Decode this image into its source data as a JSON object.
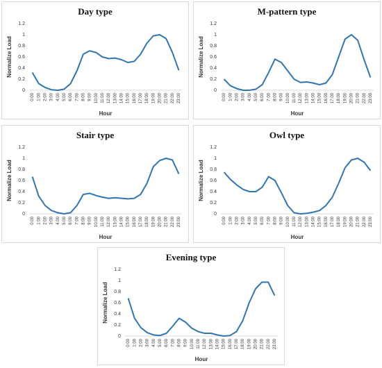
{
  "chart_data": [
    {
      "type": "line",
      "title": "Day type",
      "x_label": "Hour",
      "y_label": "Normalize Load",
      "categories": [
        "0:00",
        "1:00",
        "2:00",
        "3:00",
        "4:00",
        "5:00",
        "6:00",
        "7:00",
        "8:00",
        "9:00",
        "10:00",
        "11:00",
        "12:00",
        "13:00",
        "14:00",
        "15:00",
        "16:00",
        "17:00",
        "18:00",
        "19:00",
        "20:00",
        "21:00",
        "22:00",
        "23:00"
      ],
      "values": [
        0.32,
        0.12,
        0.05,
        0.01,
        0.0,
        0.02,
        0.12,
        0.35,
        0.65,
        0.71,
        0.68,
        0.6,
        0.57,
        0.58,
        0.55,
        0.5,
        0.52,
        0.65,
        0.85,
        0.98,
        1.0,
        0.93,
        0.68,
        0.36
      ],
      "color": "#2e75b6",
      "ylim": [
        0,
        1.2
      ],
      "yticks": [
        0,
        0.2,
        0.4,
        0.6,
        0.8,
        1,
        1.2
      ],
      "grid": false
    },
    {
      "type": "line",
      "title": "M-pattern type",
      "x_label": "Hour",
      "y_label": "Normalize Load",
      "categories": [
        "0:00",
        "1:00",
        "2:00",
        "3:00",
        "4:00",
        "5:00",
        "6:00",
        "7:00",
        "8:00",
        "9:00",
        "10:00",
        "11:00",
        "12:00",
        "13:00",
        "14:00",
        "15:00",
        "16:00",
        "17:00",
        "18:00",
        "19:00",
        "20:00",
        "21:00",
        "22:00",
        "23:00"
      ],
      "values": [
        0.2,
        0.08,
        0.03,
        0.0,
        0.0,
        0.02,
        0.1,
        0.32,
        0.56,
        0.5,
        0.35,
        0.2,
        0.14,
        0.15,
        0.13,
        0.1,
        0.13,
        0.28,
        0.6,
        0.92,
        1.0,
        0.9,
        0.55,
        0.23
      ],
      "color": "#2e75b6",
      "ylim": [
        0,
        1.2
      ],
      "yticks": [
        0,
        0.2,
        0.4,
        0.6,
        0.8,
        1,
        1.2
      ],
      "grid": false
    },
    {
      "type": "line",
      "title": "Stair type",
      "x_label": "Hour",
      "y_label": "Normalize Load",
      "categories": [
        "0:00",
        "1:00",
        "2:00",
        "3:00",
        "4:00",
        "5:00",
        "6:00",
        "7:00",
        "8:00",
        "9:00",
        "10:00",
        "11:00",
        "12:00",
        "13:00",
        "14:00",
        "15:00",
        "16:00",
        "17:00",
        "18:00",
        "19:00",
        "20:00",
        "21:00",
        "22:00",
        "23:00"
      ],
      "values": [
        0.67,
        0.32,
        0.15,
        0.06,
        0.02,
        0.0,
        0.02,
        0.15,
        0.35,
        0.37,
        0.33,
        0.3,
        0.28,
        0.29,
        0.28,
        0.27,
        0.28,
        0.35,
        0.55,
        0.85,
        0.96,
        1.0,
        0.97,
        0.72
      ],
      "color": "#2e75b6",
      "ylim": [
        0,
        1.2
      ],
      "yticks": [
        0,
        0.2,
        0.4,
        0.6,
        0.8,
        1,
        1.2
      ],
      "grid": false
    },
    {
      "type": "line",
      "title": "Owl type",
      "x_label": "Hour",
      "y_label": "Normalize Load",
      "categories": [
        "0:00",
        "1:00",
        "2:00",
        "3:00",
        "4:00",
        "5:00",
        "6:00",
        "7:00",
        "8:00",
        "9:00",
        "10:00",
        "11:00",
        "12:00",
        "13:00",
        "14:00",
        "15:00",
        "16:00",
        "17:00",
        "18:00",
        "19:00",
        "20:00",
        "21:00",
        "22:00",
        "23:00"
      ],
      "values": [
        0.75,
        0.62,
        0.52,
        0.44,
        0.4,
        0.4,
        0.48,
        0.67,
        0.6,
        0.38,
        0.15,
        0.02,
        0.0,
        0.01,
        0.03,
        0.06,
        0.15,
        0.3,
        0.55,
        0.83,
        0.97,
        1.0,
        0.93,
        0.78
      ],
      "color": "#2e75b6",
      "ylim": [
        0,
        1.2
      ],
      "yticks": [
        0,
        0.2,
        0.4,
        0.6,
        0.8,
        1,
        1.2
      ],
      "grid": false
    },
    {
      "type": "line",
      "title": "Evening type",
      "x_label": "Hour",
      "y_label": "Normalize Load",
      "categories": [
        "0:00",
        "1:00",
        "2:00",
        "3:00",
        "4:00",
        "5:00",
        "6:00",
        "7:00",
        "8:00",
        "9:00",
        "10:00",
        "11:00",
        "12:00",
        "13:00",
        "14:00",
        "15:00",
        "16:00",
        "17:00",
        "18:00",
        "19:00",
        "20:00",
        "21:00",
        "22:00",
        "23:00"
      ],
      "values": [
        0.68,
        0.32,
        0.15,
        0.06,
        0.02,
        0.01,
        0.05,
        0.18,
        0.32,
        0.25,
        0.14,
        0.08,
        0.05,
        0.05,
        0.02,
        0.0,
        0.01,
        0.08,
        0.28,
        0.6,
        0.85,
        0.97,
        0.97,
        0.73
      ],
      "color": "#2e75b6",
      "ylim": [
        0,
        1.2
      ],
      "yticks": [
        0,
        0.2,
        0.4,
        0.6,
        0.8,
        1,
        1.2
      ],
      "grid": false
    }
  ]
}
